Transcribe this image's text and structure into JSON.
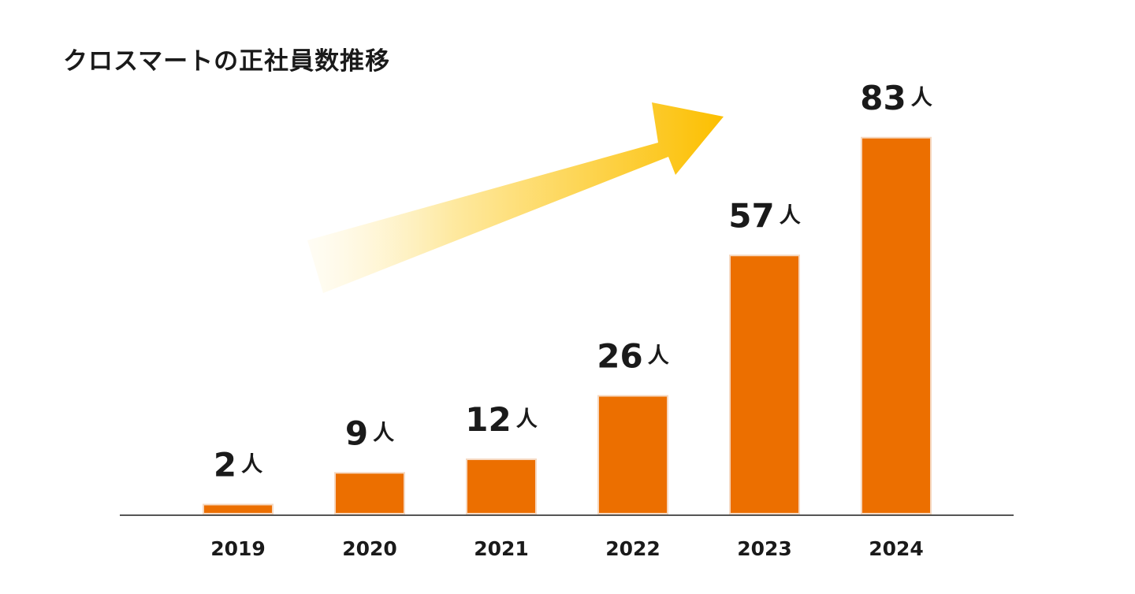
{
  "chart_data": {
    "type": "bar",
    "title": "クロスマートの正社員数推移",
    "categories": [
      "2019",
      "2020",
      "2021",
      "2022",
      "2023",
      "2024"
    ],
    "values": [
      2,
      9,
      12,
      26,
      57,
      83
    ],
    "unit": "人",
    "xlabel": "",
    "ylabel": "",
    "ylim": [
      0,
      100
    ],
    "grid": false,
    "colors": {
      "bar": "#ec6f00",
      "bar_outline": "#f6d8c0",
      "axis": "#555555",
      "arrow_start": "#fff6d6",
      "arrow_end": "#fcbf00"
    }
  }
}
